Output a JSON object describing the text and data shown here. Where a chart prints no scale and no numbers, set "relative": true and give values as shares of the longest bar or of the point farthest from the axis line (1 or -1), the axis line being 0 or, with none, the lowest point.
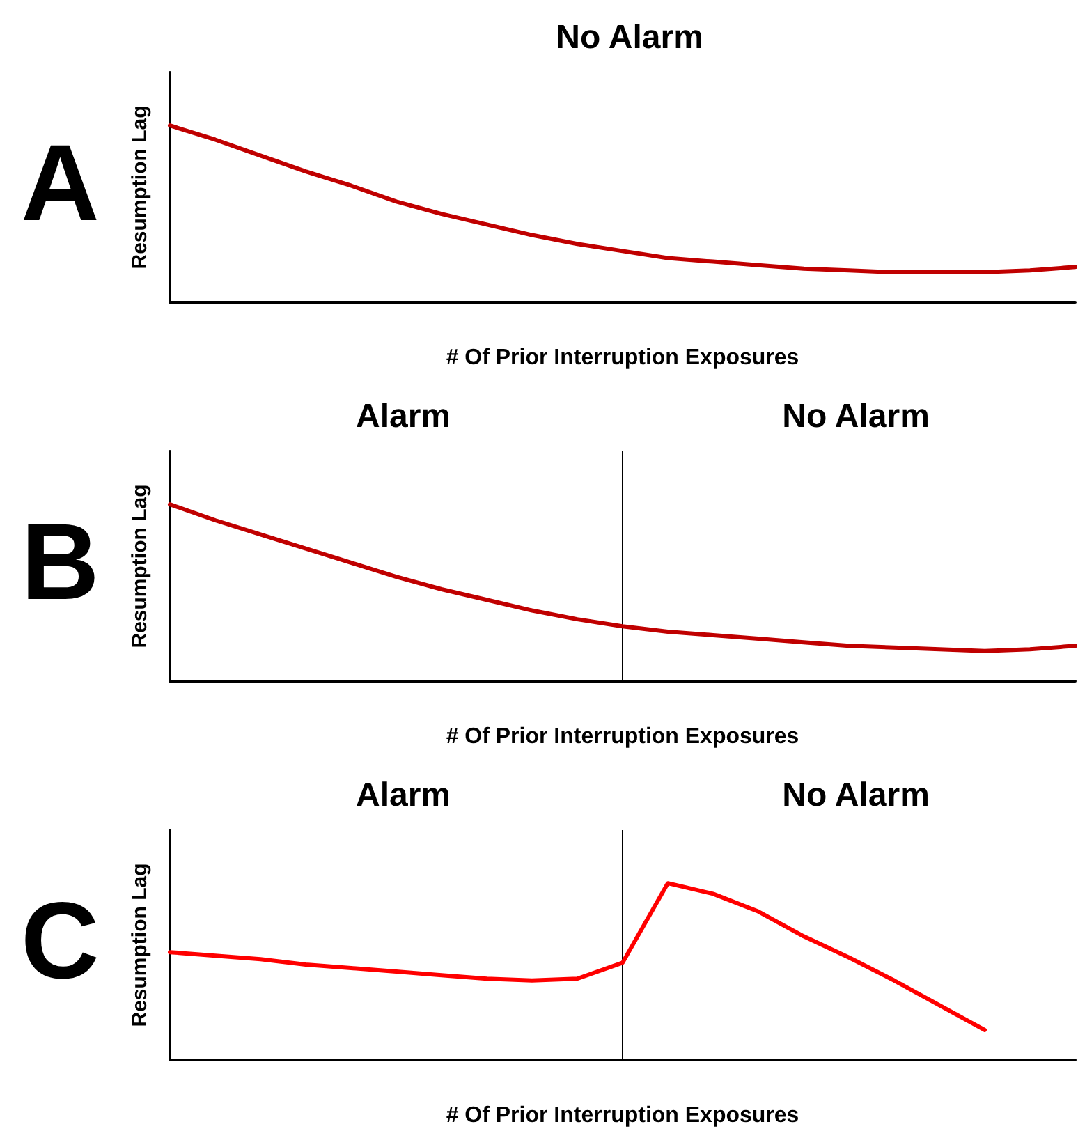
{
  "chart_data": [
    {
      "type": "line",
      "title": "A",
      "annotations": [
        "No Alarm"
      ],
      "xlabel": "# Of Prior Interruption Exposures",
      "ylabel": "Resumption Lag",
      "relative": true,
      "tick_labels": false,
      "marker": "none",
      "categories": [
        null,
        null,
        null,
        null,
        null,
        null,
        null,
        null,
        null,
        null,
        null,
        null,
        null,
        null,
        null,
        null,
        null,
        null,
        null,
        null,
        null
      ],
      "series": [
        {
          "color": "#c00000",
          "values": [
            1,
            0.92,
            0.83,
            0.74,
            0.66,
            0.57,
            0.5,
            0.44,
            0.38,
            0.33,
            0.29,
            0.25,
            0.23,
            0.21,
            0.19,
            0.18,
            0.17,
            0.17,
            0.17,
            0.18,
            0.2
          ]
        }
      ]
    },
    {
      "type": "line",
      "title": "B",
      "annotations": [
        "Alarm",
        "No Alarm"
      ],
      "xlabel": "# Of Prior Interruption Exposures",
      "ylabel": "Resumption Lag",
      "relative": true,
      "tick_labels": false,
      "marker": "none",
      "categories": [
        null,
        null,
        null,
        null,
        null,
        null,
        null,
        null,
        null,
        null,
        null,
        null,
        null,
        null,
        null,
        null,
        null,
        null,
        null,
        null,
        null
      ],
      "series": [
        {
          "color": "#c00000",
          "values": [
            1,
            0.91,
            0.83,
            0.75,
            0.67,
            0.59,
            0.52,
            0.46,
            0.4,
            0.35,
            0.31,
            0.28,
            0.26,
            0.24,
            0.22,
            0.2,
            0.19,
            0.18,
            0.17,
            0.18,
            0.2
          ]
        }
      ]
    },
    {
      "type": "line",
      "title": "C",
      "annotations": [
        "Alarm",
        "No Alarm"
      ],
      "xlabel": "# Of Prior Interruption Exposures",
      "ylabel": "Resumption Lag",
      "relative": true,
      "tick_labels": false,
      "marker": "none",
      "categories": [
        null,
        null,
        null,
        null,
        null,
        null,
        null,
        null,
        null,
        null,
        null,
        null,
        null,
        null,
        null,
        null,
        null,
        null,
        null,
        null,
        null
      ],
      "series": [
        {
          "color": "#ff0000",
          "values": [
            0.61,
            0.59,
            0.57,
            0.54,
            0.52,
            0.5,
            0.48,
            0.46,
            0.45,
            0.46,
            0.55,
            1,
            0.94,
            0.84,
            0.7,
            0.58,
            0.45,
            0.31,
            0.17,
            null,
            null
          ]
        }
      ]
    }
  ]
}
